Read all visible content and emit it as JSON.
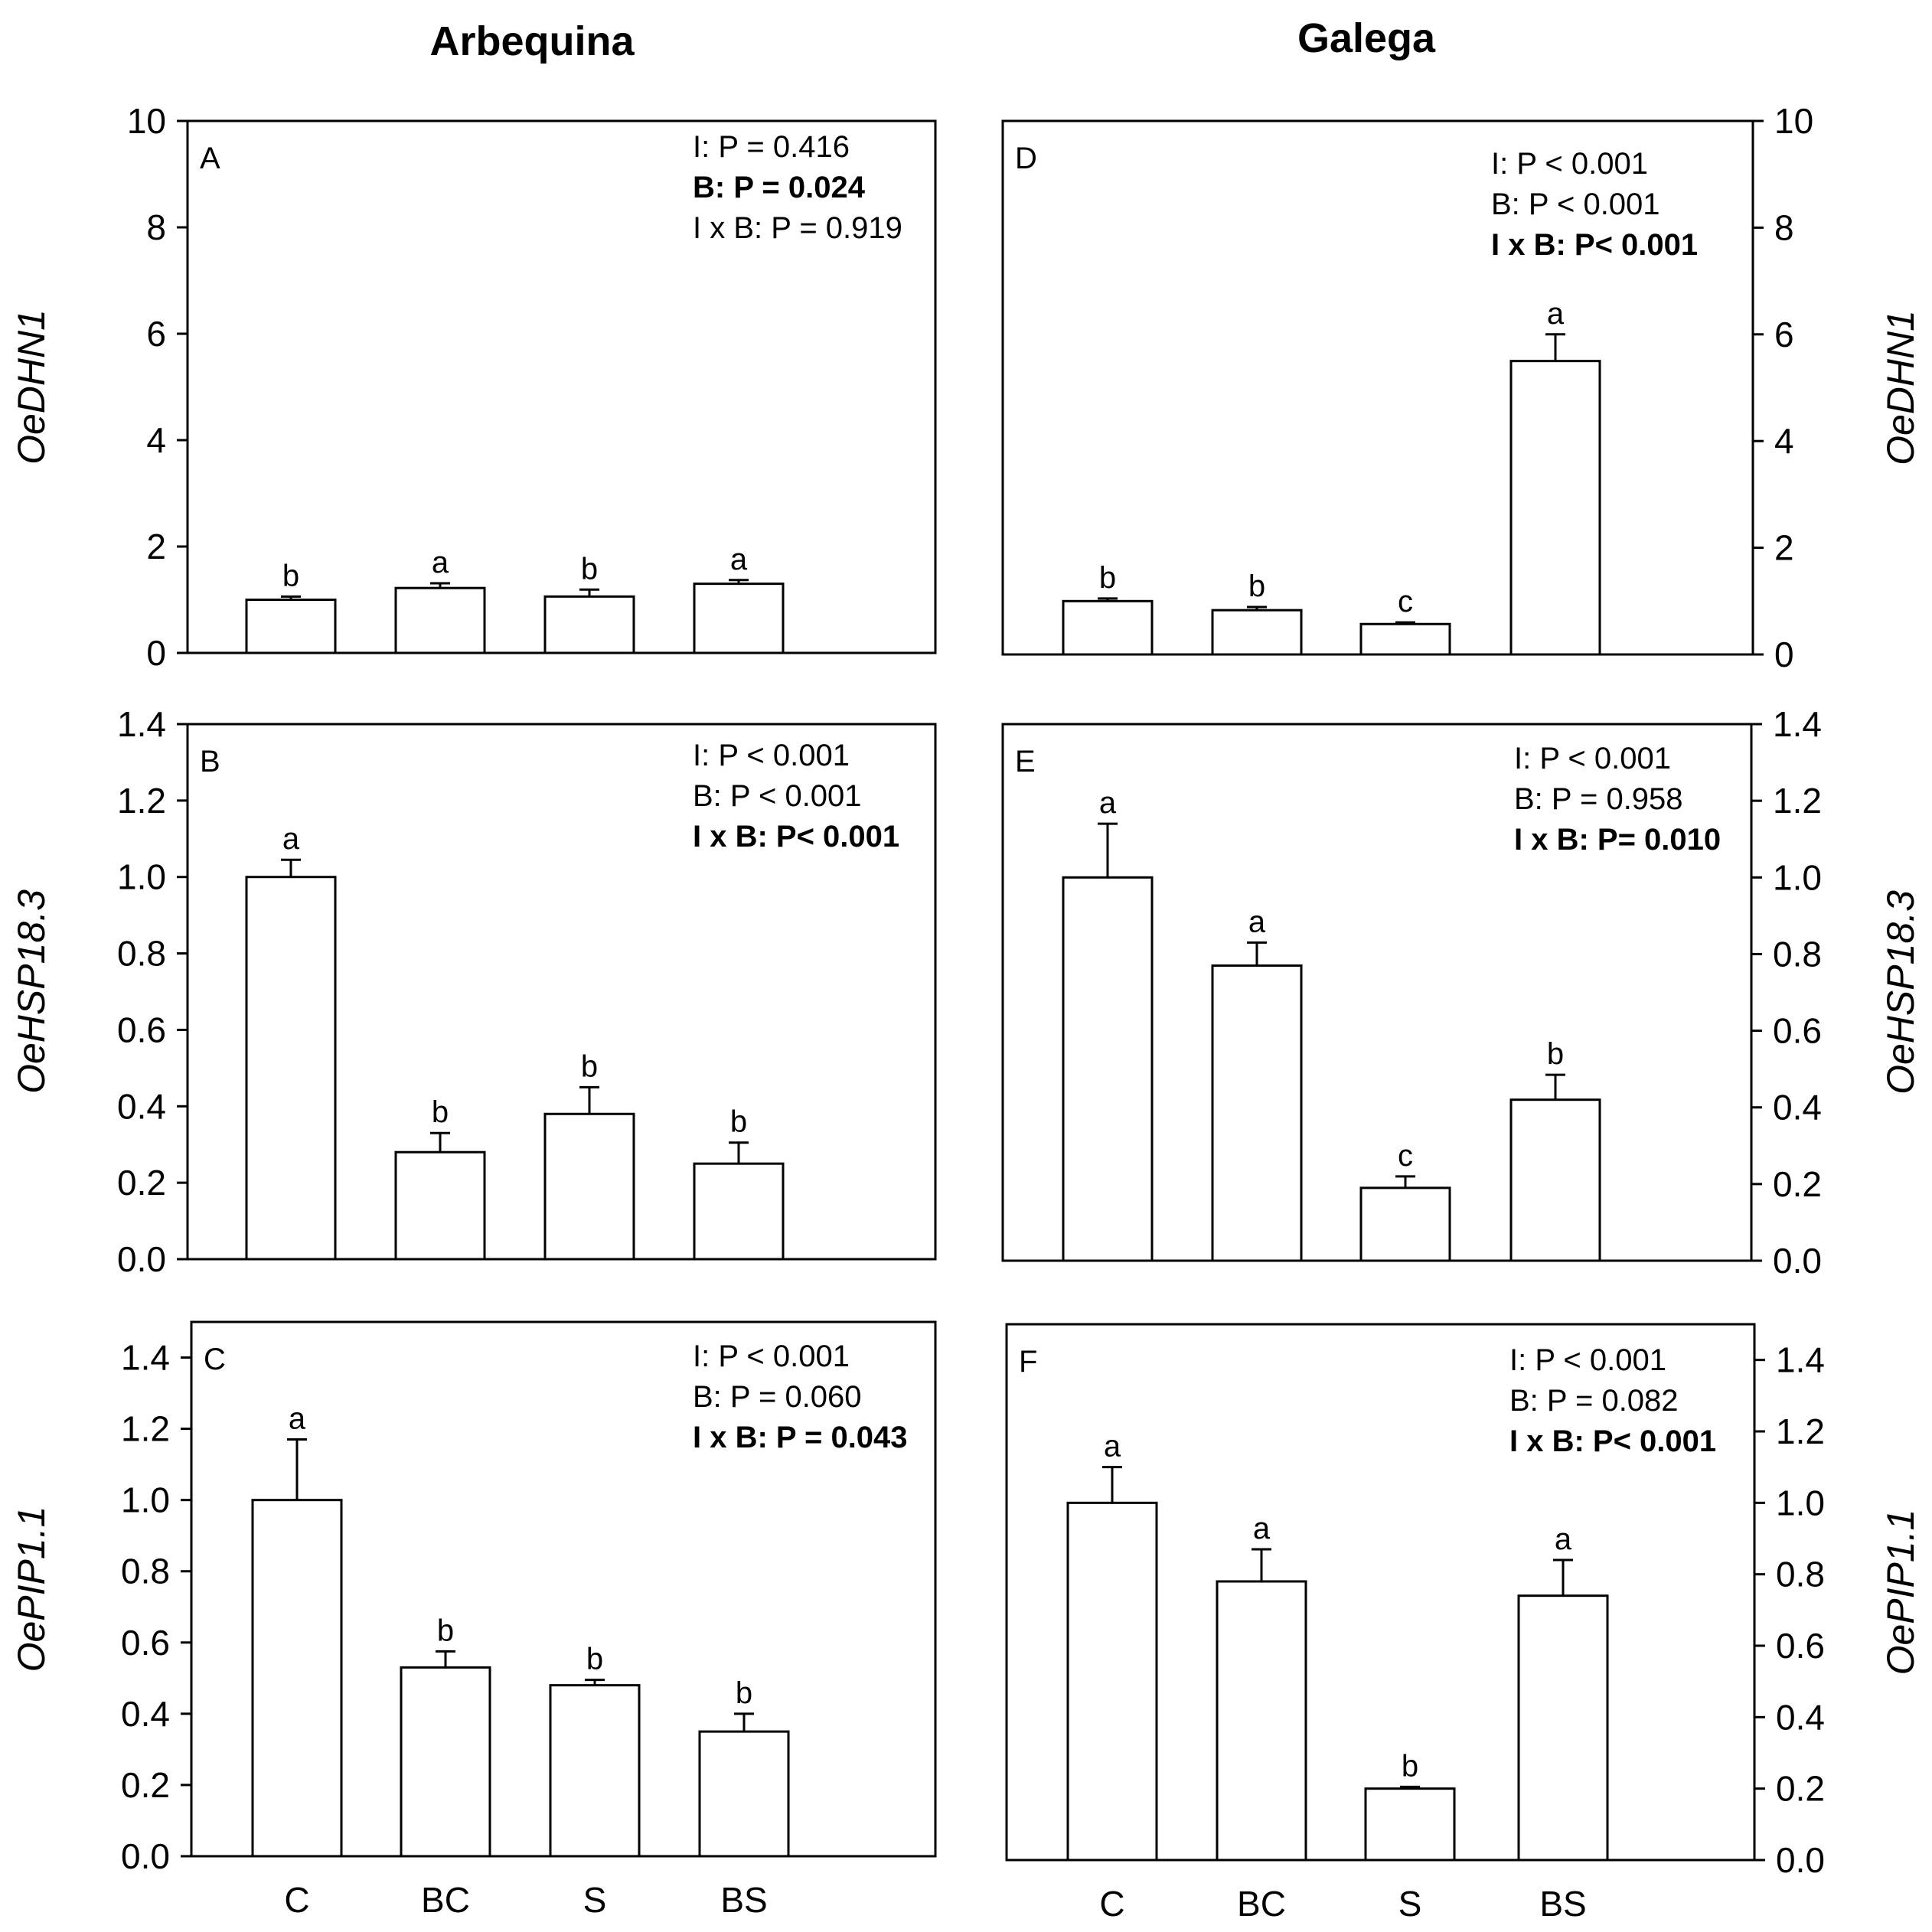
{
  "figure": {
    "column_titles": [
      "Arbequina",
      "Galega"
    ]
  },
  "chart_data": [
    {
      "type": "bar",
      "panel": "A",
      "cultivar": "Arbequina",
      "ylabel": "OeDHN1",
      "ylim": [
        0,
        10
      ],
      "yticks": [
        "0",
        "2",
        "4",
        "6",
        "8",
        "10"
      ],
      "categories": [
        "C",
        "BC",
        "S",
        "BS"
      ],
      "values": [
        1.0,
        1.22,
        1.06,
        1.3
      ],
      "errors": [
        0.06,
        0.09,
        0.13,
        0.07
      ],
      "letters": [
        "b",
        "a",
        "b",
        "a"
      ],
      "stats": [
        {
          "text": "I: P = 0.416",
          "bold": false
        },
        {
          "text": "B: P = 0.024",
          "bold": true
        },
        {
          "text": "I x B: P = 0.919",
          "bold": false
        }
      ]
    },
    {
      "type": "bar",
      "panel": "B",
      "cultivar": "Arbequina",
      "ylabel": "OeHSP18.3",
      "ylim": [
        0,
        1.4
      ],
      "yticks": [
        "0.0",
        "0.2",
        "0.4",
        "0.6",
        "0.8",
        "1.0",
        "1.2",
        "1.4"
      ],
      "categories": [
        "C",
        "BC",
        "S",
        "BS"
      ],
      "values": [
        1.0,
        0.28,
        0.38,
        0.25
      ],
      "errors": [
        0.045,
        0.05,
        0.07,
        0.055
      ],
      "letters": [
        "a",
        "b",
        "b",
        "b"
      ],
      "stats": [
        {
          "text": "I: P < 0.001",
          "bold": false
        },
        {
          "text": "B: P < 0.001",
          "bold": false
        },
        {
          "text": "I x B: P< 0.001",
          "bold": true
        }
      ]
    },
    {
      "type": "bar",
      "panel": "C",
      "cultivar": "Arbequina",
      "ylabel": "OePIP1.1",
      "ylim": [
        0,
        1.5
      ],
      "yticks": [
        "0.0",
        "0.2",
        "0.4",
        "0.6",
        "0.8",
        "1.0",
        "1.2",
        "1.4"
      ],
      "categories": [
        "C",
        "BC",
        "S",
        "BS"
      ],
      "values": [
        1.0,
        0.53,
        0.48,
        0.35
      ],
      "errors": [
        0.17,
        0.045,
        0.015,
        0.05
      ],
      "letters": [
        "a",
        "b",
        "b",
        "b"
      ],
      "stats": [
        {
          "text": "I: P < 0.001",
          "bold": false
        },
        {
          "text": "B: P = 0.060",
          "bold": false
        },
        {
          "text": "I x B: P = 0.043",
          "bold": true
        }
      ]
    },
    {
      "type": "bar",
      "panel": "D",
      "cultivar": "Galega",
      "ylabel": "OeDHN1",
      "ylim": [
        0,
        10
      ],
      "yticks": [
        "0",
        "2",
        "4",
        "6",
        "8",
        "10"
      ],
      "categories": [
        "C",
        "BC",
        "S",
        "BS"
      ],
      "values": [
        1.0,
        0.83,
        0.57,
        5.5
      ],
      "errors": [
        0.05,
        0.06,
        0.03,
        0.5
      ],
      "letters": [
        "b",
        "b",
        "c",
        "a"
      ],
      "stats": [
        {
          "text": "I: P < 0.001",
          "bold": false
        },
        {
          "text": "B: P < 0.001",
          "bold": false
        },
        {
          "text": "I x B: P< 0.001",
          "bold": true
        }
      ]
    },
    {
      "type": "bar",
      "panel": "E",
      "cultivar": "Galega",
      "ylabel": "OeHSP18.3",
      "ylim": [
        0,
        1.4
      ],
      "yticks": [
        "0.0",
        "0.2",
        "0.4",
        "0.6",
        "0.8",
        "1.0",
        "1.2",
        "1.4"
      ],
      "categories": [
        "C",
        "BC",
        "S",
        "BS"
      ],
      "values": [
        1.0,
        0.77,
        0.19,
        0.42
      ],
      "errors": [
        0.14,
        0.06,
        0.03,
        0.065
      ],
      "letters": [
        "a",
        "a",
        "c",
        "b"
      ],
      "stats": [
        {
          "text": "I: P < 0.001",
          "bold": false
        },
        {
          "text": "B: P = 0.958",
          "bold": false
        },
        {
          "text": "I x B: P= 0.010",
          "bold": true
        }
      ]
    },
    {
      "type": "bar",
      "panel": "F",
      "cultivar": "Galega",
      "ylabel": "OePIP1.1",
      "ylim": [
        0,
        1.5
      ],
      "yticks": [
        "0.0",
        "0.2",
        "0.4",
        "0.6",
        "0.8",
        "1.0",
        "1.2",
        "1.4"
      ],
      "categories": [
        "C",
        "BC",
        "S",
        "BS"
      ],
      "values": [
        1.0,
        0.78,
        0.2,
        0.74
      ],
      "errors": [
        0.1,
        0.09,
        0.005,
        0.1
      ],
      "letters": [
        "a",
        "a",
        "b",
        "a"
      ],
      "stats": [
        {
          "text": "I: P < 0.001",
          "bold": false
        },
        {
          "text": "B: P = 0.082",
          "bold": false
        },
        {
          "text": "I x B: P< 0.001",
          "bold": true
        }
      ]
    }
  ]
}
